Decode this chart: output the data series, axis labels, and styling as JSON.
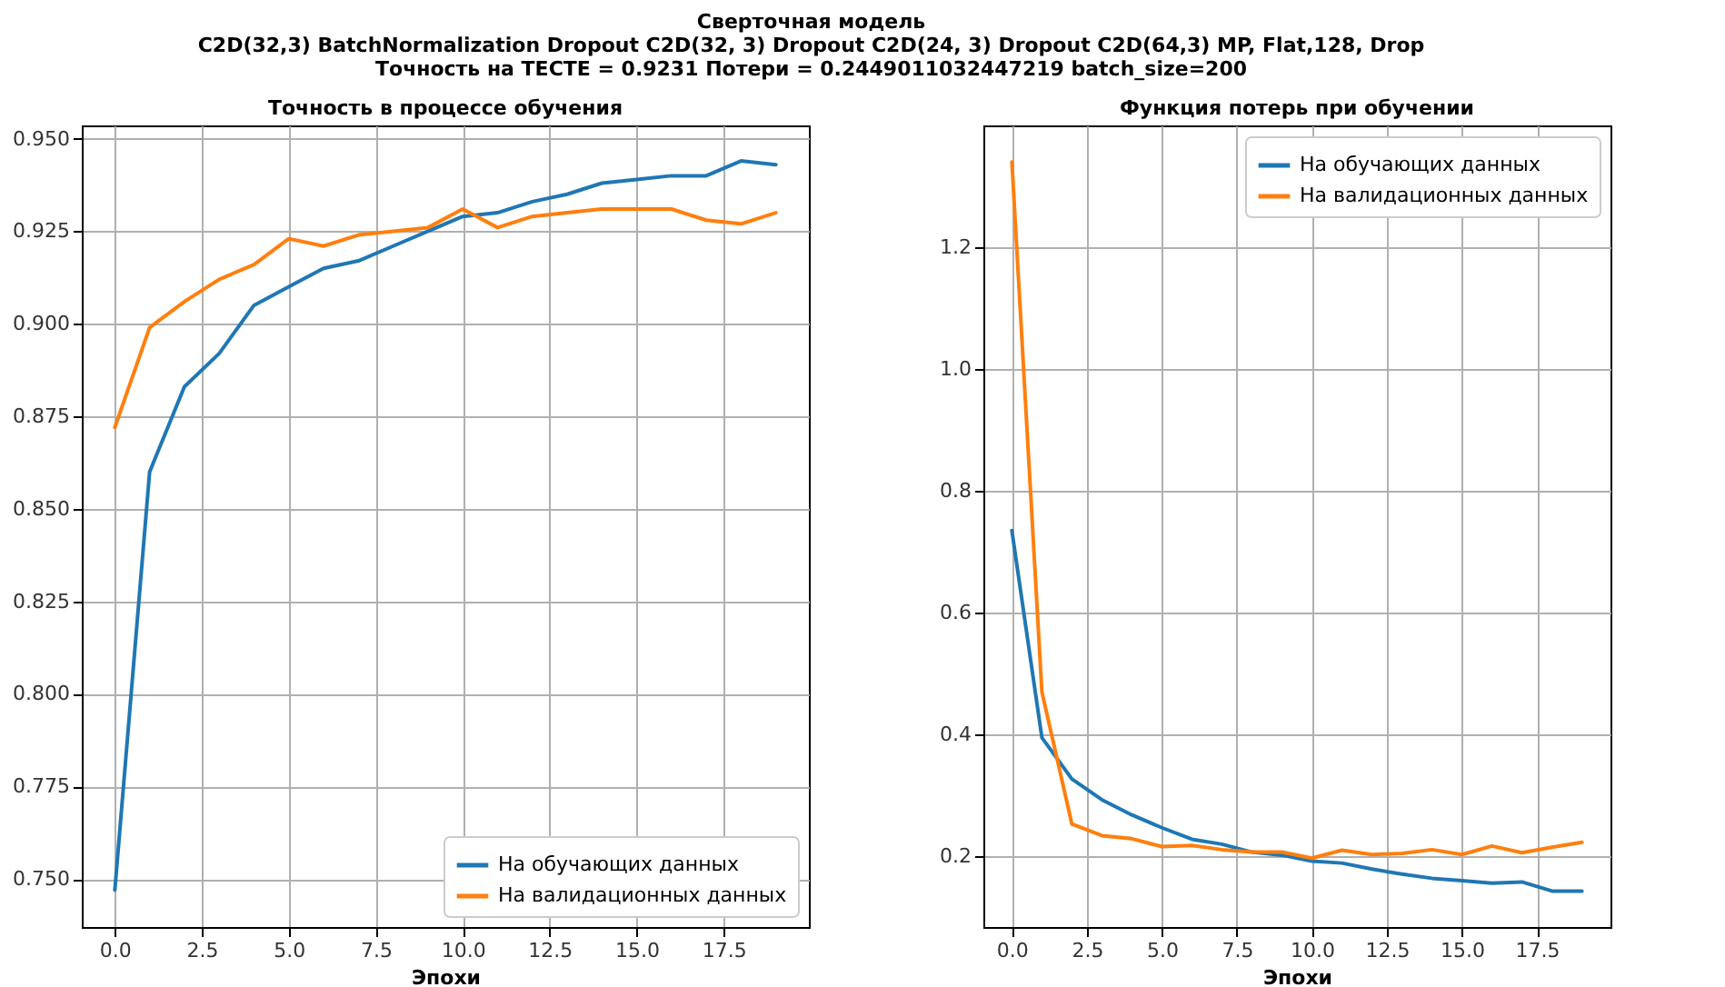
{
  "chart_data": [
    {
      "type": "line",
      "title": "Точность в процессе обучения",
      "xlabel": "Эпохи",
      "annotations": [
        "Сверточная  модель",
        "C2D(32,3) BatchNormalization  Dropout C2D(32, 3) Dropout C2D(24, 3) Dropout C2D(64,3) MP, Flat,128, Drop",
        "Точность на ТЕСТЕ =  0.9231  Потери = 0.2449011032447219 batch_size=200"
      ],
      "x": [
        0,
        1,
        2,
        3,
        4,
        5,
        6,
        7,
        8,
        9,
        10,
        11,
        12,
        13,
        14,
        15,
        16,
        17,
        18,
        19
      ],
      "series": [
        {
          "name": "На обучающих данных",
          "color": "#1f77b4",
          "values": [
            0.747,
            0.86,
            0.883,
            0.892,
            0.905,
            0.91,
            0.915,
            0.917,
            0.921,
            0.925,
            0.929,
            0.93,
            0.933,
            0.935,
            0.938,
            0.939,
            0.94,
            0.94,
            0.944,
            0.943
          ]
        },
        {
          "name": "На валидационных данных",
          "color": "#ff7f0e",
          "values": [
            0.872,
            0.899,
            0.906,
            0.912,
            0.916,
            0.923,
            0.921,
            0.924,
            0.925,
            0.926,
            0.931,
            0.926,
            0.929,
            0.93,
            0.931,
            0.931,
            0.931,
            0.928,
            0.927,
            0.93
          ]
        }
      ],
      "xlim": [
        -0.95,
        19.95
      ],
      "ylim": [
        0.737,
        0.9536
      ],
      "xticks": [
        {
          "value": 0,
          "label": "0.0"
        },
        {
          "value": 2.5,
          "label": "2.5"
        },
        {
          "value": 5,
          "label": "5.0"
        },
        {
          "value": 7.5,
          "label": "7.5"
        },
        {
          "value": 10,
          "label": "10.0"
        },
        {
          "value": 12.5,
          "label": "12.5"
        },
        {
          "value": 15,
          "label": "15.0"
        },
        {
          "value": 17.5,
          "label": "17.5"
        }
      ],
      "yticks": [
        {
          "value": 0.75,
          "label": "0.750"
        },
        {
          "value": 0.775,
          "label": "0.775"
        },
        {
          "value": 0.8,
          "label": "0.800"
        },
        {
          "value": 0.825,
          "label": "0.825"
        },
        {
          "value": 0.85,
          "label": "0.850"
        },
        {
          "value": 0.875,
          "label": "0.875"
        },
        {
          "value": 0.9,
          "label": "0.900"
        },
        {
          "value": 0.925,
          "label": "0.925"
        },
        {
          "value": 0.95,
          "label": "0.950"
        }
      ],
      "grid": true,
      "legend": "bottom right"
    },
    {
      "type": "line",
      "title": "Функция потерь при обучении",
      "xlabel": "Эпохи",
      "x": [
        0,
        1,
        2,
        3,
        4,
        5,
        6,
        7,
        8,
        9,
        10,
        11,
        12,
        13,
        14,
        15,
        16,
        17,
        18,
        19
      ],
      "series": [
        {
          "name": "На обучающих данных",
          "color": "#1f77b4",
          "values": [
            0.735,
            0.395,
            0.327,
            0.293,
            0.268,
            0.247,
            0.228,
            0.22,
            0.207,
            0.202,
            0.192,
            0.189,
            0.179,
            0.171,
            0.164,
            0.16,
            0.156,
            0.158,
            0.143,
            0.143
          ]
        },
        {
          "name": "На валидационных данных",
          "color": "#ff7f0e",
          "values": [
            1.34,
            0.47,
            0.253,
            0.234,
            0.229,
            0.216,
            0.218,
            0.211,
            0.207,
            0.207,
            0.197,
            0.21,
            0.203,
            0.205,
            0.211,
            0.203,
            0.217,
            0.206,
            0.215,
            0.223
          ]
        }
      ],
      "xlim": [
        -0.95,
        19.95
      ],
      "ylim": [
        0.084,
        1.4
      ],
      "xticks": [
        {
          "value": 0,
          "label": "0.0"
        },
        {
          "value": 2.5,
          "label": "2.5"
        },
        {
          "value": 5,
          "label": "5.0"
        },
        {
          "value": 7.5,
          "label": "7.5"
        },
        {
          "value": 10,
          "label": "10.0"
        },
        {
          "value": 12.5,
          "label": "12.5"
        },
        {
          "value": 15,
          "label": "15.0"
        },
        {
          "value": 17.5,
          "label": "17.5"
        }
      ],
      "yticks": [
        {
          "value": 0.2,
          "label": "0.2"
        },
        {
          "value": 0.4,
          "label": "0.4"
        },
        {
          "value": 0.6,
          "label": "0.6"
        },
        {
          "value": 0.8,
          "label": "0.8"
        },
        {
          "value": 1.0,
          "label": "1.0"
        },
        {
          "value": 1.2,
          "label": "1.2"
        }
      ],
      "grid": true,
      "legend": "top right"
    }
  ]
}
